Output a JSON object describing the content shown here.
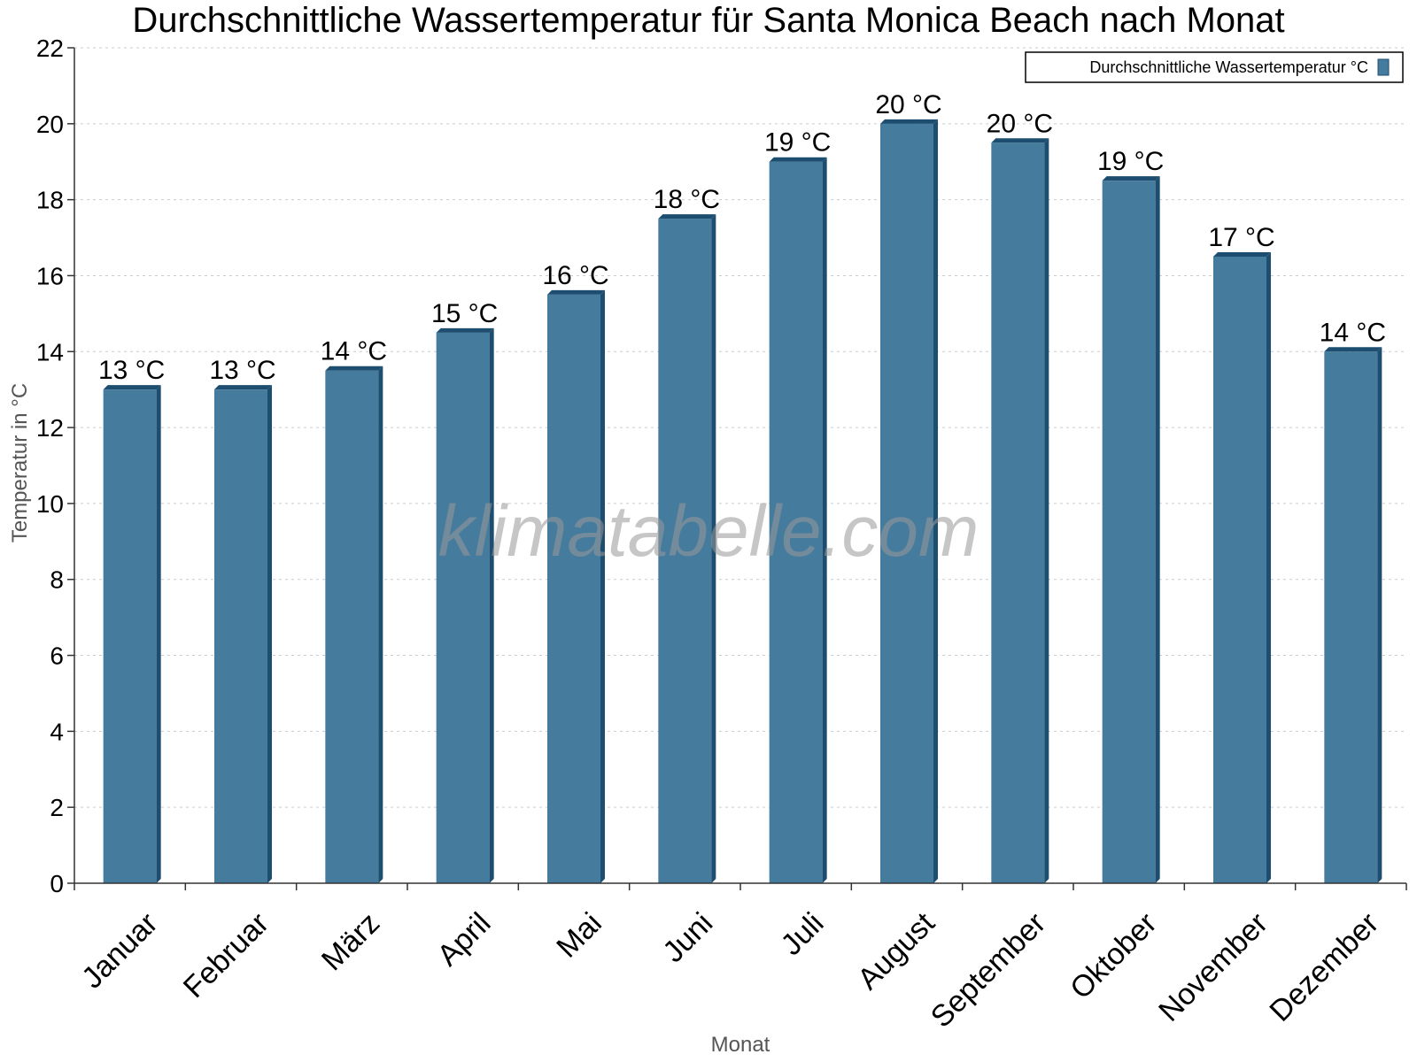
{
  "watermark": "klimatabelle.com",
  "colors": {
    "bar": "#457b9d",
    "bar_side": "#1d4e6f",
    "bar_top": "#1d4e6f",
    "grid": "#cccccc",
    "axis": "#333333"
  },
  "chart_data": {
    "type": "bar",
    "title": "Durchschnittliche Wassertemperatur für Santa Monica Beach nach Monat",
    "xlabel": "Monat",
    "ylabel": "Temperatur in °C",
    "ylim": [
      0,
      22
    ],
    "yticks": [
      0,
      2,
      4,
      6,
      8,
      10,
      12,
      14,
      16,
      18,
      20,
      22
    ],
    "grid": true,
    "legend_position": "top-right",
    "categories": [
      "Januar",
      "Februar",
      "März",
      "April",
      "Mai",
      "Juni",
      "Juli",
      "August",
      "September",
      "Oktober",
      "November",
      "Dezember"
    ],
    "series": [
      {
        "name": "Durchschnittliche Wassertemperatur °C",
        "values": [
          13,
          13,
          13.5,
          14.5,
          15.5,
          17.5,
          19,
          20,
          19.5,
          18.5,
          16.5,
          14
        ],
        "labels": [
          "13 °C",
          "13 °C",
          "14 °C",
          "15 °C",
          "16 °C",
          "18 °C",
          "19 °C",
          "20 °C",
          "20 °C",
          "19 °C",
          "17 °C",
          "14 °C"
        ]
      }
    ]
  }
}
